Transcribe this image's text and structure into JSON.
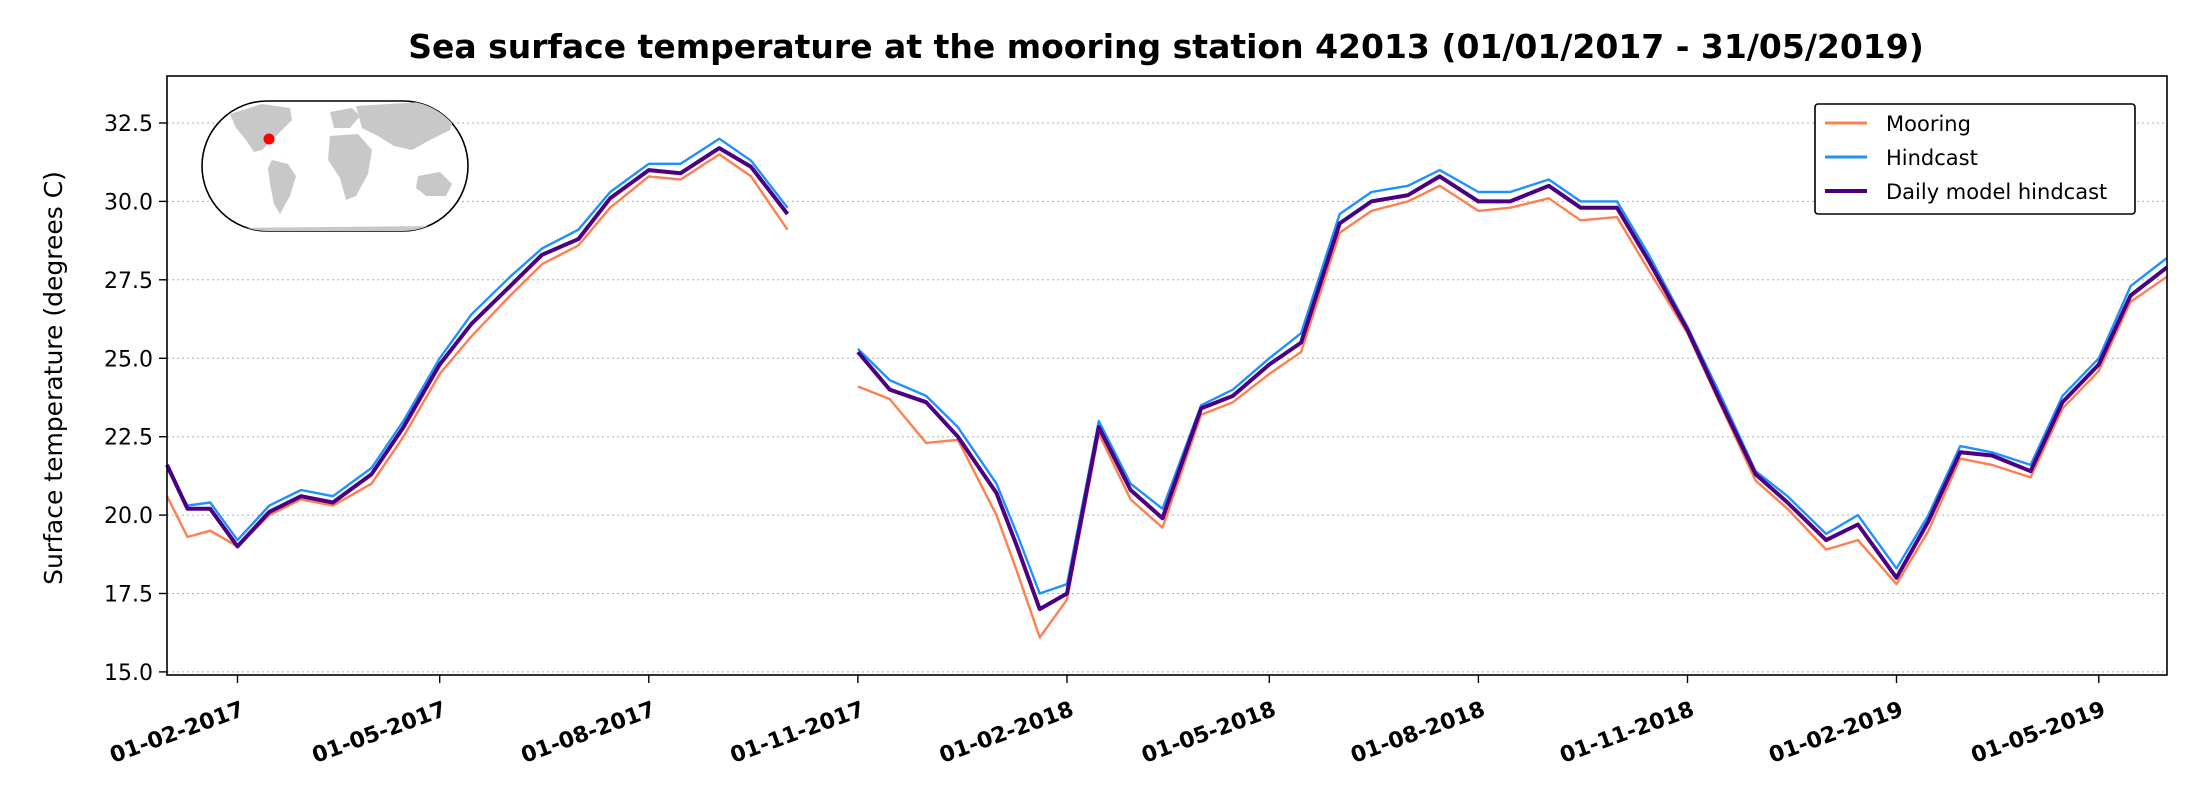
{
  "chart_data": {
    "type": "line",
    "title": "Sea surface temperature at the mooring station 42013 (01/01/2017 - 31/05/2019)",
    "xlabel": "",
    "ylabel": "Surface temperature (degrees C)",
    "xlim": [
      "2017-01-01",
      "2019-05-31"
    ],
    "ylim": [
      14.9,
      34.0
    ],
    "yticks": [
      15.0,
      17.5,
      20.0,
      22.5,
      25.0,
      27.5,
      30.0,
      32.5
    ],
    "ytick_labels": [
      "15.0",
      "17.5",
      "20.0",
      "22.5",
      "25.0",
      "27.5",
      "30.0",
      "32.5"
    ],
    "xticks": [
      "2017-02-01",
      "2017-05-01",
      "2017-08-01",
      "2017-11-01",
      "2018-02-01",
      "2018-05-01",
      "2018-08-01",
      "2018-11-01",
      "2019-02-01",
      "2019-05-01"
    ],
    "xtick_labels": [
      "01-02-2017",
      "01-05-2017",
      "01-08-2017",
      "01-11-2017",
      "01-02-2018",
      "01-05-2018",
      "01-08-2018",
      "01-11-2018",
      "01-02-2019",
      "01-05-2019"
    ],
    "grid": "horizontal dotted",
    "legend_position": "top-right",
    "inset": "world map with station location marked in red (Gulf of Mexico)",
    "series": [
      {
        "name": "Mooring",
        "color": "#ff7f50",
        "x": [
          "2017-01-01",
          "2017-01-10",
          "2017-01-20",
          "2017-02-01",
          "2017-02-15",
          "2017-03-01",
          "2017-03-15",
          "2017-04-01",
          "2017-04-15",
          "2017-05-01",
          "2017-05-15",
          "2017-06-01",
          "2017-06-15",
          "2017-07-01",
          "2017-07-15",
          "2017-08-01",
          "2017-08-15",
          "2017-09-01",
          "2017-09-15",
          "2017-10-01",
          "2017-10-10",
          "2017-11-01",
          "2017-11-15",
          "2017-12-01",
          "2017-12-15",
          "2018-01-01",
          "2018-01-10",
          "2018-01-20",
          "2018-02-01",
          "2018-02-15",
          "2018-03-01",
          "2018-03-15",
          "2018-04-01",
          "2018-04-15",
          "2018-05-01",
          "2018-05-15",
          "2018-06-01",
          "2018-06-15",
          "2018-07-01",
          "2018-07-15",
          "2018-08-01",
          "2018-08-15",
          "2018-09-01",
          "2018-09-15",
          "2018-10-01",
          "2018-10-15",
          "2018-11-01",
          "2018-11-15",
          "2018-12-01",
          "2018-12-15",
          "2019-01-01",
          "2019-01-15",
          "2019-02-01",
          "2019-02-15",
          "2019-03-01",
          "2019-03-15",
          "2019-04-01",
          "2019-04-15",
          "2019-05-01",
          "2019-05-15",
          "2019-05-31"
        ],
        "values": [
          20.6,
          19.3,
          19.5,
          19.0,
          20.0,
          20.5,
          20.3,
          21.0,
          22.5,
          24.5,
          25.7,
          27.0,
          28.0,
          28.6,
          29.8,
          30.8,
          30.7,
          31.5,
          30.8,
          29.1,
          null,
          24.1,
          23.7,
          22.3,
          22.4,
          20.0,
          18.2,
          16.1,
          17.3,
          22.6,
          20.5,
          19.6,
          23.2,
          23.6,
          24.5,
          25.2,
          29.0,
          29.7,
          30.0,
          30.5,
          29.7,
          29.8,
          30.1,
          29.4,
          29.5,
          27.8,
          25.8,
          23.6,
          21.1,
          20.2,
          18.9,
          19.2,
          17.8,
          19.5,
          21.8,
          21.6,
          21.2,
          23.4,
          24.6,
          26.8,
          27.6
        ]
      },
      {
        "name": "Hindcast",
        "color": "#1e90ff",
        "x": [
          "2017-01-01",
          "2017-01-10",
          "2017-01-20",
          "2017-02-01",
          "2017-02-15",
          "2017-03-01",
          "2017-03-15",
          "2017-04-01",
          "2017-04-15",
          "2017-05-01",
          "2017-05-15",
          "2017-06-01",
          "2017-06-15",
          "2017-07-01",
          "2017-07-15",
          "2017-08-01",
          "2017-08-15",
          "2017-09-01",
          "2017-09-15",
          "2017-10-01",
          "2017-10-10",
          "2017-11-01",
          "2017-11-15",
          "2017-12-01",
          "2017-12-15",
          "2018-01-01",
          "2018-01-10",
          "2018-01-20",
          "2018-02-01",
          "2018-02-15",
          "2018-03-01",
          "2018-03-15",
          "2018-04-01",
          "2018-04-15",
          "2018-05-01",
          "2018-05-15",
          "2018-06-01",
          "2018-06-15",
          "2018-07-01",
          "2018-07-15",
          "2018-08-01",
          "2018-08-15",
          "2018-09-01",
          "2018-09-15",
          "2018-10-01",
          "2018-10-15",
          "2018-11-01",
          "2018-11-15",
          "2018-12-01",
          "2018-12-15",
          "2019-01-01",
          "2019-01-15",
          "2019-02-01",
          "2019-02-15",
          "2019-03-01",
          "2019-03-15",
          "2019-04-01",
          "2019-04-15",
          "2019-05-01",
          "2019-05-15",
          "2019-05-31"
        ],
        "values": [
          21.5,
          20.3,
          20.4,
          19.2,
          20.3,
          20.8,
          20.6,
          21.5,
          23.0,
          25.0,
          26.4,
          27.6,
          28.5,
          29.1,
          30.3,
          31.2,
          31.2,
          32.0,
          31.3,
          29.8,
          null,
          25.3,
          24.3,
          23.8,
          22.8,
          21.0,
          19.4,
          17.5,
          17.8,
          23.0,
          21.0,
          20.2,
          23.5,
          24.0,
          25.0,
          25.8,
          29.6,
          30.3,
          30.5,
          31.0,
          30.3,
          30.3,
          30.7,
          30.0,
          30.0,
          28.3,
          26.0,
          23.9,
          21.4,
          20.6,
          19.4,
          20.0,
          18.3,
          20.0,
          22.2,
          22.0,
          21.6,
          23.8,
          25.0,
          27.3,
          28.2
        ]
      },
      {
        "name": "Daily model hindcast",
        "color": "#4b0082",
        "x": [
          "2017-01-01",
          "2017-01-10",
          "2017-01-20",
          "2017-02-01",
          "2017-02-15",
          "2017-03-01",
          "2017-03-15",
          "2017-04-01",
          "2017-04-15",
          "2017-05-01",
          "2017-05-15",
          "2017-06-01",
          "2017-06-15",
          "2017-07-01",
          "2017-07-15",
          "2017-08-01",
          "2017-08-15",
          "2017-09-01",
          "2017-09-15",
          "2017-10-01",
          "2017-10-10",
          "2017-11-01",
          "2017-11-15",
          "2017-12-01",
          "2017-12-15",
          "2018-01-01",
          "2018-01-10",
          "2018-01-20",
          "2018-02-01",
          "2018-02-15",
          "2018-03-01",
          "2018-03-15",
          "2018-04-01",
          "2018-04-15",
          "2018-05-01",
          "2018-05-15",
          "2018-06-01",
          "2018-06-15",
          "2018-07-01",
          "2018-07-15",
          "2018-08-01",
          "2018-08-15",
          "2018-09-01",
          "2018-09-15",
          "2018-10-01",
          "2018-10-15",
          "2018-11-01",
          "2018-11-15",
          "2018-12-01",
          "2018-12-15",
          "2019-01-01",
          "2019-01-15",
          "2019-02-01",
          "2019-02-15",
          "2019-03-01",
          "2019-03-15",
          "2019-04-01",
          "2019-04-15",
          "2019-05-01",
          "2019-05-15",
          "2019-05-31"
        ],
        "values": [
          21.6,
          20.2,
          20.2,
          19.0,
          20.1,
          20.6,
          20.4,
          21.3,
          22.8,
          24.8,
          26.1,
          27.3,
          28.3,
          28.8,
          30.1,
          31.0,
          30.9,
          31.7,
          31.1,
          29.6,
          null,
          25.2,
          24.0,
          23.6,
          22.5,
          20.7,
          19.0,
          17.0,
          17.5,
          22.8,
          20.8,
          19.9,
          23.4,
          23.8,
          24.8,
          25.5,
          29.3,
          30.0,
          30.2,
          30.8,
          30.0,
          30.0,
          30.5,
          29.8,
          29.8,
          28.1,
          25.9,
          23.7,
          21.3,
          20.4,
          19.2,
          19.7,
          18.0,
          19.8,
          22.0,
          21.9,
          21.4,
          23.6,
          24.8,
          27.0,
          27.9
        ]
      }
    ],
    "annotations": []
  }
}
